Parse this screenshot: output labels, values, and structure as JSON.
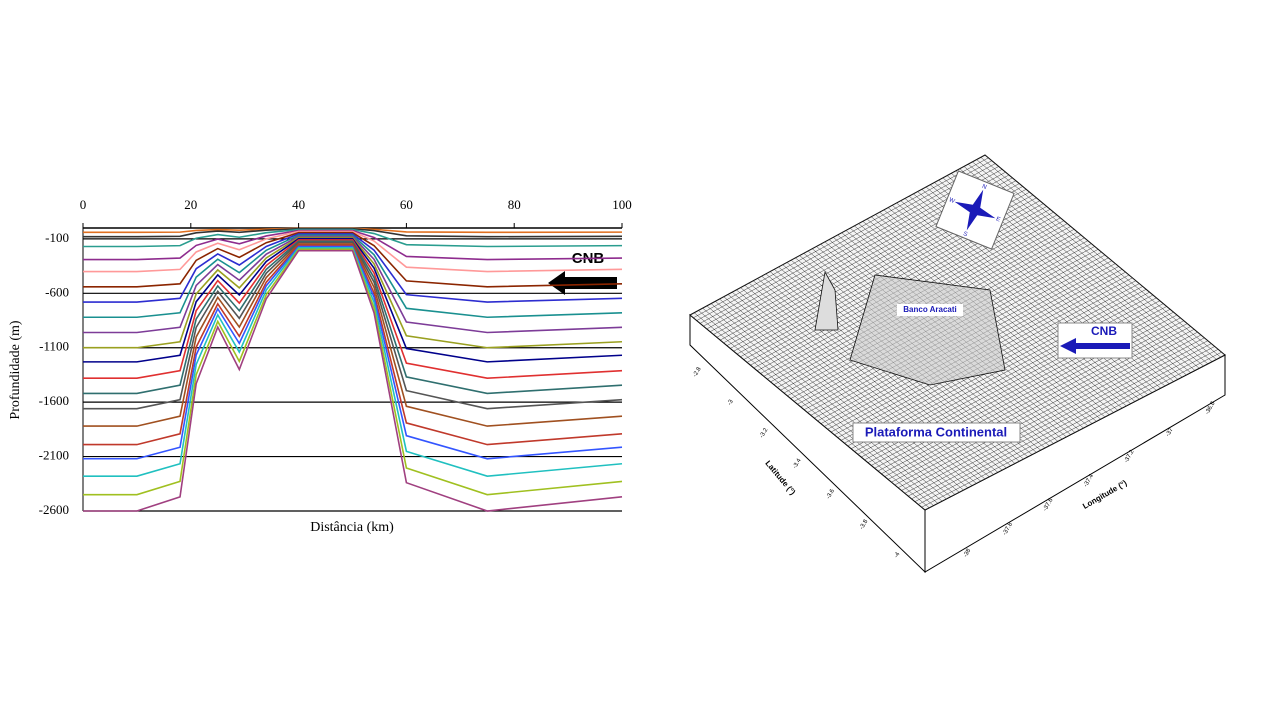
{
  "chart_data": {
    "type": "line",
    "xlabel": "Distância (km)",
    "ylabel": "Profundidade (m)",
    "annotation": "CNB",
    "x": [
      0,
      10,
      18,
      21,
      25,
      29,
      34,
      40,
      50,
      54,
      60,
      75,
      100
    ],
    "xlim": [
      0,
      100
    ],
    "xticks": [
      0,
      20,
      40,
      60,
      80,
      100
    ],
    "ylim": [
      -2600,
      0
    ],
    "yticks": [
      -100,
      -600,
      -1100,
      -1600,
      -2100,
      -2600
    ],
    "grid": true,
    "series": [
      {
        "color": "#e07020",
        "values": [
          -40,
          -40,
          -38,
          -22,
          -14,
          -20,
          -10,
          -3,
          -3,
          -12,
          -36,
          -40,
          -38
        ]
      },
      {
        "color": "#333333",
        "values": [
          -80,
          -80,
          -76,
          -44,
          -28,
          -40,
          -20,
          -6,
          -6,
          -24,
          -72,
          -80,
          -76
        ]
      },
      {
        "color": "#2a9d8f",
        "values": [
          -170,
          -170,
          -162,
          -94,
          -60,
          -85,
          -43,
          -14,
          -14,
          -51,
          -153,
          -170,
          -162
        ]
      },
      {
        "color": "#8e2c8e",
        "values": [
          -290,
          -290,
          -276,
          -160,
          -102,
          -145,
          -73,
          -23,
          -23,
          -87,
          -261,
          -290,
          -276
        ]
      },
      {
        "color": "#ff9999",
        "values": [
          -400,
          -400,
          -380,
          -220,
          -140,
          -200,
          -100,
          -32,
          -32,
          -120,
          -360,
          -400,
          -380
        ]
      },
      {
        "color": "#8b2500",
        "values": [
          -540,
          -540,
          -513,
          -297,
          -189,
          -270,
          -135,
          -43,
          -43,
          -162,
          -486,
          -540,
          -513
        ]
      },
      {
        "color": "#2d2dd0",
        "values": [
          -680,
          -680,
          -646,
          -374,
          -238,
          -340,
          -170,
          -54,
          -54,
          -204,
          -612,
          -680,
          -646
        ]
      },
      {
        "color": "#1a9090",
        "values": [
          -820,
          -820,
          -779,
          -451,
          -287,
          -410,
          -205,
          -66,
          -66,
          -246,
          -738,
          -820,
          -779
        ]
      },
      {
        "color": "#7d3c98",
        "values": [
          -960,
          -960,
          -912,
          -528,
          -336,
          -480,
          -240,
          -77,
          -77,
          -288,
          -864,
          -960,
          -912
        ]
      },
      {
        "color": "#9aa020",
        "values": [
          -1100,
          -1100,
          -1045,
          -605,
          -385,
          -550,
          -275,
          -88,
          -88,
          -330,
          -990,
          -1100,
          -1045
        ]
      },
      {
        "color": "#00008b",
        "values": [
          -1230,
          -1230,
          -1169,
          -677,
          -431,
          -615,
          -308,
          -98,
          -98,
          -369,
          -1107,
          -1230,
          -1169
        ]
      },
      {
        "color": "#e03030",
        "values": [
          -1380,
          -1380,
          -1311,
          -759,
          -483,
          -690,
          -345,
          -110,
          -110,
          -414,
          -1242,
          -1380,
          -1311
        ]
      },
      {
        "color": "#2f6f6f",
        "values": [
          -1520,
          -1520,
          -1444,
          -836,
          -532,
          -760,
          -380,
          -122,
          -122,
          -456,
          -1368,
          -1520,
          -1444
        ]
      },
      {
        "color": "#555555",
        "values": [
          -1660,
          -1660,
          -1577,
          -913,
          -581,
          -830,
          -415,
          -133,
          -133,
          -498,
          -1494,
          -1660,
          -1577
        ]
      },
      {
        "color": "#a05020",
        "values": [
          -1820,
          -1820,
          -1729,
          -1001,
          -637,
          -910,
          -455,
          -146,
          -146,
          -546,
          -1638,
          -1820,
          -1729
        ]
      },
      {
        "color": "#c0392b",
        "values": [
          -1990,
          -1990,
          -1891,
          -1095,
          -697,
          -995,
          -498,
          -159,
          -159,
          -597,
          -1791,
          -1990,
          -1891
        ]
      },
      {
        "color": "#3355ff",
        "values": [
          -2120,
          -2120,
          -2014,
          -1166,
          -742,
          -1060,
          -530,
          -170,
          -170,
          -636,
          -1908,
          -2120,
          -2014
        ]
      },
      {
        "color": "#20c0c0",
        "values": [
          -2280,
          -2280,
          -2166,
          -1254,
          -798,
          -1140,
          -570,
          -182,
          -182,
          -684,
          -2052,
          -2280,
          -2166
        ]
      },
      {
        "color": "#a0c020",
        "values": [
          -2450,
          -2450,
          -2328,
          -1348,
          -858,
          -1225,
          -613,
          -196,
          -196,
          -735,
          -2205,
          -2450,
          -2328
        ]
      },
      {
        "color": "#a04080",
        "values": [
          -2600,
          -2600,
          -2470,
          -1430,
          -910,
          -1300,
          -650,
          -208,
          -208,
          -780,
          -2340,
          -2600,
          -2470
        ]
      }
    ]
  },
  "surface_figure": {
    "bank_label": "Banco Aracati",
    "current_label": "CNB",
    "shelf_label": "Plataforma Continental",
    "latitude_label": "Latitude (°)",
    "longitude_label": "Longitude (°)",
    "latitude_ticks": [
      "-2.8",
      "-3",
      "-3.2",
      "-3.4",
      "-3.6",
      "-3.8",
      "-4"
    ],
    "longitude_ticks": [
      "-38",
      "-37.8",
      "-37.6",
      "-37.4",
      "-37.2",
      "-37",
      "-36.8"
    ],
    "compass": [
      "N",
      "E",
      "S",
      "W"
    ]
  }
}
